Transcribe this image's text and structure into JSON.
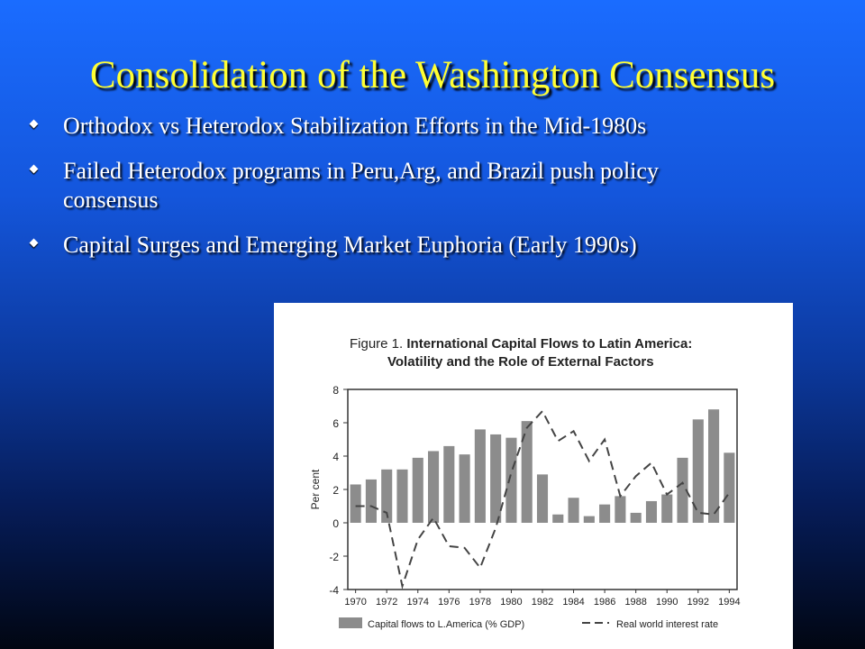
{
  "slide": {
    "title": "Consolidation of the Washington Consensus",
    "bullets": [
      "Orthodox vs Heterodox Stabilization Efforts in the Mid-1980s",
      "Failed Heterodox programs in Peru,Arg, and Brazil push policy consensus",
      "Capital Surges and Emerging Market Euphoria (Early 1990s)"
    ]
  },
  "figure": {
    "label": "Figure 1.",
    "title_line1": "International Capital Flows to Latin America:",
    "title_line2": "Volatility and the Role of External Factors"
  },
  "colors": {
    "title": "#ffff33",
    "bar": "#8c8c8c",
    "line": "#444444"
  },
  "chart_data": {
    "type": "bar",
    "ylabel": "Per cent",
    "ylim": [
      -4,
      8
    ],
    "yticks": [
      -4,
      -2,
      0,
      2,
      4,
      6,
      8
    ],
    "x": [
      1970,
      1971,
      1972,
      1973,
      1974,
      1975,
      1976,
      1977,
      1978,
      1979,
      1980,
      1981,
      1982,
      1983,
      1984,
      1985,
      1986,
      1987,
      1988,
      1989,
      1990,
      1991,
      1992,
      1993,
      1994
    ],
    "x_tick_labels": [
      "1970",
      "1972",
      "1974",
      "1976",
      "1978",
      "1980",
      "1982",
      "1984",
      "1986",
      "1988",
      "1990",
      "1992",
      "1994"
    ],
    "series": [
      {
        "name": "Capital flows to L.America (% GDP)",
        "style": "bar",
        "values": [
          2.3,
          2.6,
          3.2,
          3.2,
          3.9,
          4.3,
          4.6,
          4.1,
          5.6,
          5.3,
          5.1,
          6.1,
          2.9,
          0.5,
          1.5,
          0.4,
          1.1,
          1.6,
          0.6,
          1.3,
          1.7,
          3.9,
          6.2,
          6.8,
          4.2
        ]
      },
      {
        "name": "Real world interest rate",
        "style": "dashed-line",
        "values": [
          1.0,
          1.0,
          0.6,
          -3.8,
          -1.0,
          0.3,
          -1.4,
          -1.5,
          -2.7,
          -0.3,
          3.0,
          5.7,
          6.7,
          4.9,
          5.5,
          3.7,
          5.0,
          1.6,
          2.8,
          3.6,
          1.7,
          2.4,
          0.6,
          0.5,
          1.8
        ]
      }
    ],
    "legend": "bottom"
  }
}
